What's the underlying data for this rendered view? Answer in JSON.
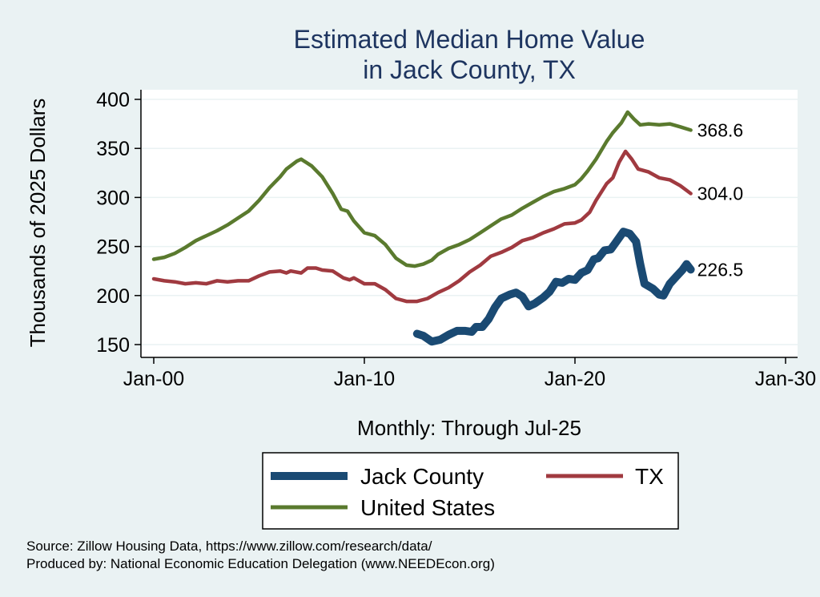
{
  "chart_data": {
    "type": "line",
    "title": "Estimated Median Home Value",
    "subtitle": "in Jack County, TX",
    "xlabel": "Monthly: Through Jul-25",
    "ylabel": "Thousands of 2025 Dollars",
    "x_ticks": [
      {
        "label": "Jan-00",
        "value": 2000
      },
      {
        "label": "Jan-10",
        "value": 2010
      },
      {
        "label": "Jan-20",
        "value": 2020
      },
      {
        "label": "Jan-30",
        "value": 2030
      }
    ],
    "y_ticks": [
      150,
      200,
      250,
      300,
      350,
      400
    ],
    "xlim": [
      2000,
      2030
    ],
    "ylim": [
      150,
      400
    ],
    "grid": true,
    "legend_position": "bottom",
    "series": [
      {
        "name": "Jack County",
        "color": "#1a4a73",
        "end_label": "226.5",
        "points": [
          [
            2012.5,
            161
          ],
          [
            2012.8,
            159
          ],
          [
            2013.2,
            153
          ],
          [
            2013.6,
            155
          ],
          [
            2014.0,
            160
          ],
          [
            2014.4,
            164
          ],
          [
            2014.8,
            164
          ],
          [
            2015.1,
            163
          ],
          [
            2015.3,
            168
          ],
          [
            2015.6,
            168
          ],
          [
            2015.9,
            176
          ],
          [
            2016.2,
            188
          ],
          [
            2016.5,
            197
          ],
          [
            2016.9,
            201
          ],
          [
            2017.2,
            203
          ],
          [
            2017.5,
            199
          ],
          [
            2017.8,
            189
          ],
          [
            2018.1,
            192
          ],
          [
            2018.5,
            198
          ],
          [
            2018.8,
            204
          ],
          [
            2019.1,
            214
          ],
          [
            2019.4,
            213
          ],
          [
            2019.7,
            217
          ],
          [
            2020.0,
            216
          ],
          [
            2020.3,
            223
          ],
          [
            2020.6,
            226
          ],
          [
            2020.9,
            237
          ],
          [
            2021.1,
            238
          ],
          [
            2021.4,
            246
          ],
          [
            2021.7,
            247
          ],
          [
            2022.0,
            256
          ],
          [
            2022.3,
            265
          ],
          [
            2022.6,
            263
          ],
          [
            2022.9,
            255
          ],
          [
            2023.1,
            232
          ],
          [
            2023.3,
            212
          ],
          [
            2023.7,
            207
          ],
          [
            2024.0,
            201
          ],
          [
            2024.2,
            200
          ],
          [
            2024.5,
            212
          ],
          [
            2024.8,
            219
          ],
          [
            2025.1,
            226
          ],
          [
            2025.3,
            232
          ],
          [
            2025.5,
            226.5
          ]
        ]
      },
      {
        "name": "TX",
        "color": "#a03a40",
        "end_label": "304.0",
        "points": [
          [
            2000.0,
            217
          ],
          [
            2000.5,
            215
          ],
          [
            2001.0,
            214
          ],
          [
            2001.5,
            212
          ],
          [
            2002.0,
            213
          ],
          [
            2002.5,
            212
          ],
          [
            2003.0,
            215
          ],
          [
            2003.5,
            214
          ],
          [
            2004.0,
            215
          ],
          [
            2004.5,
            215
          ],
          [
            2005.0,
            220
          ],
          [
            2005.5,
            224
          ],
          [
            2006.0,
            225
          ],
          [
            2006.3,
            223
          ],
          [
            2006.5,
            225
          ],
          [
            2007.0,
            223
          ],
          [
            2007.3,
            228
          ],
          [
            2007.7,
            228
          ],
          [
            2008.0,
            226
          ],
          [
            2008.5,
            225
          ],
          [
            2009.0,
            218
          ],
          [
            2009.3,
            216
          ],
          [
            2009.5,
            218
          ],
          [
            2010.0,
            212
          ],
          [
            2010.5,
            212
          ],
          [
            2011.0,
            206
          ],
          [
            2011.5,
            197
          ],
          [
            2012.0,
            194
          ],
          [
            2012.5,
            194
          ],
          [
            2013.0,
            197
          ],
          [
            2013.5,
            203
          ],
          [
            2014.0,
            208
          ],
          [
            2014.5,
            215
          ],
          [
            2015.0,
            224
          ],
          [
            2015.5,
            231
          ],
          [
            2016.0,
            240
          ],
          [
            2016.5,
            244
          ],
          [
            2017.0,
            249
          ],
          [
            2017.5,
            256
          ],
          [
            2018.0,
            259
          ],
          [
            2018.5,
            264
          ],
          [
            2019.0,
            268
          ],
          [
            2019.5,
            273
          ],
          [
            2020.0,
            274
          ],
          [
            2020.3,
            277
          ],
          [
            2020.7,
            285
          ],
          [
            2021.0,
            297
          ],
          [
            2021.5,
            314
          ],
          [
            2021.8,
            320
          ],
          [
            2022.1,
            336
          ],
          [
            2022.4,
            347
          ],
          [
            2022.7,
            339
          ],
          [
            2023.0,
            329
          ],
          [
            2023.5,
            326
          ],
          [
            2024.0,
            320
          ],
          [
            2024.5,
            318
          ],
          [
            2025.0,
            312
          ],
          [
            2025.5,
            304.0
          ]
        ]
      },
      {
        "name": "United States",
        "color": "#5a7a2e",
        "end_label": "368.6",
        "points": [
          [
            2000.0,
            237
          ],
          [
            2000.5,
            239
          ],
          [
            2001.0,
            243
          ],
          [
            2001.5,
            249
          ],
          [
            2002.0,
            256
          ],
          [
            2002.5,
            261
          ],
          [
            2003.0,
            266
          ],
          [
            2003.5,
            272
          ],
          [
            2004.0,
            279
          ],
          [
            2004.5,
            286
          ],
          [
            2005.0,
            297
          ],
          [
            2005.5,
            310
          ],
          [
            2006.0,
            321
          ],
          [
            2006.3,
            329
          ],
          [
            2006.8,
            337
          ],
          [
            2007.0,
            339
          ],
          [
            2007.5,
            332
          ],
          [
            2008.0,
            321
          ],
          [
            2008.5,
            304
          ],
          [
            2008.9,
            288
          ],
          [
            2009.2,
            286
          ],
          [
            2009.5,
            276
          ],
          [
            2010.0,
            264
          ],
          [
            2010.5,
            261
          ],
          [
            2011.0,
            252
          ],
          [
            2011.5,
            238
          ],
          [
            2012.0,
            231
          ],
          [
            2012.4,
            230
          ],
          [
            2012.8,
            232
          ],
          [
            2013.2,
            236
          ],
          [
            2013.5,
            242
          ],
          [
            2014.0,
            248
          ],
          [
            2014.5,
            252
          ],
          [
            2015.0,
            257
          ],
          [
            2015.5,
            264
          ],
          [
            2016.0,
            271
          ],
          [
            2016.5,
            278
          ],
          [
            2017.0,
            282
          ],
          [
            2017.5,
            289
          ],
          [
            2018.0,
            295
          ],
          [
            2018.5,
            301
          ],
          [
            2019.0,
            306
          ],
          [
            2019.5,
            309
          ],
          [
            2020.0,
            313
          ],
          [
            2020.3,
            319
          ],
          [
            2020.6,
            327
          ],
          [
            2021.0,
            339
          ],
          [
            2021.5,
            357
          ],
          [
            2021.8,
            366
          ],
          [
            2022.2,
            376
          ],
          [
            2022.5,
            387
          ],
          [
            2022.8,
            380
          ],
          [
            2023.1,
            374
          ],
          [
            2023.5,
            375
          ],
          [
            2024.0,
            374
          ],
          [
            2024.5,
            375
          ],
          [
            2025.0,
            372
          ],
          [
            2025.5,
            368.6
          ]
        ]
      }
    ]
  },
  "footer": {
    "source": "Source: Zillow Housing Data, https://www.zillow.com/research/data/",
    "produced_by": "Produced by: National Economic Education Delegation (www.NEEDEcon.org)"
  }
}
